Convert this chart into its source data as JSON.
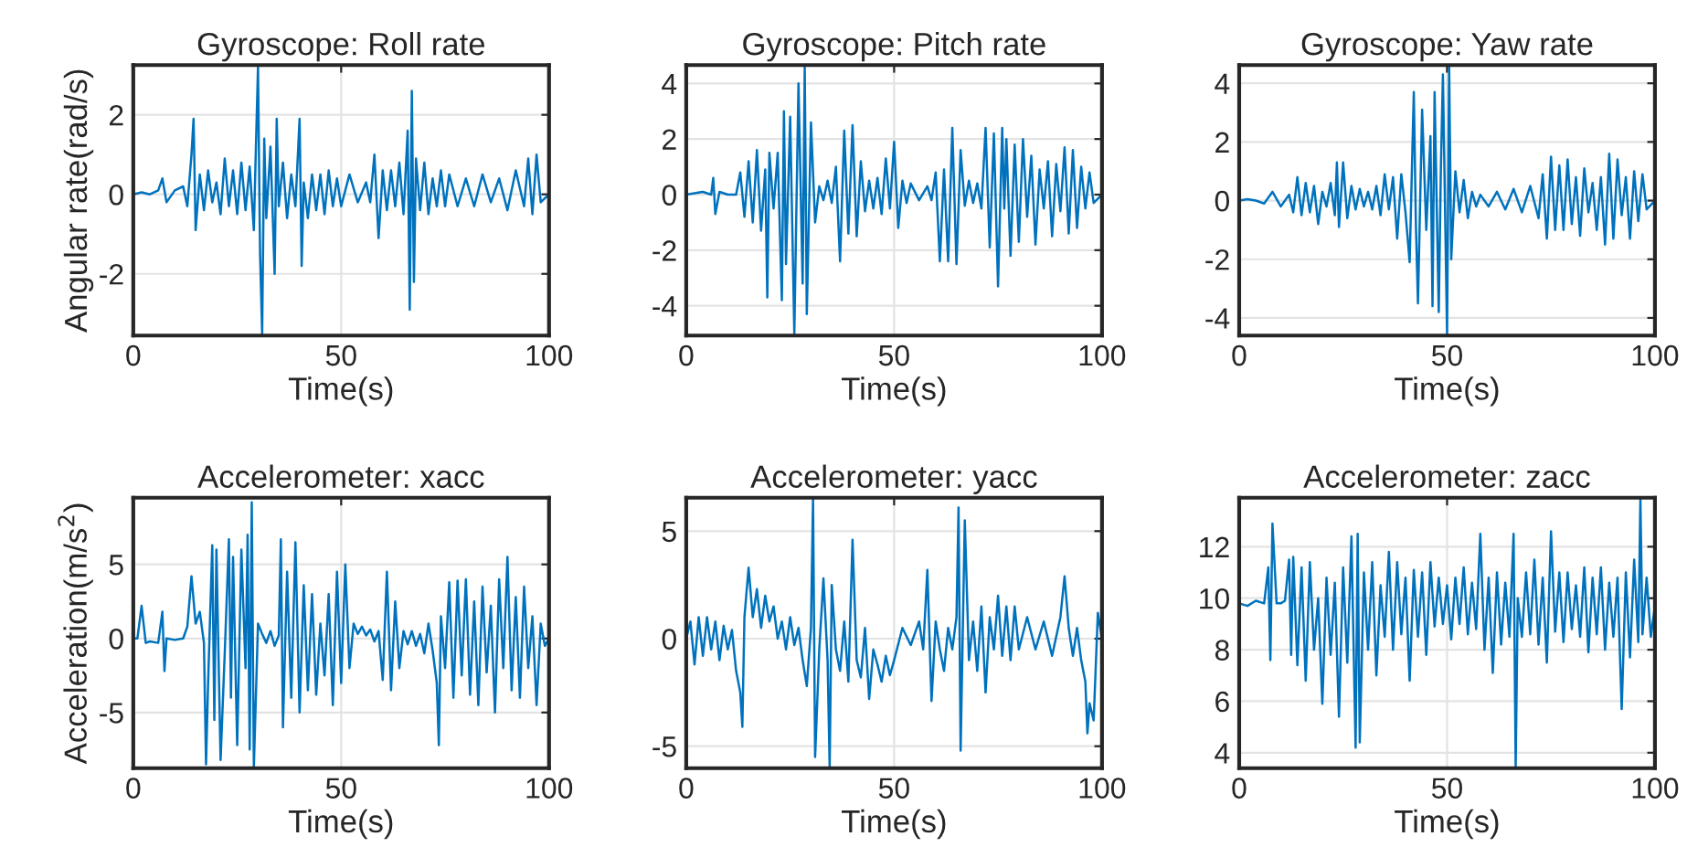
{
  "chart_data": [
    {
      "type": "line",
      "title": "Gyroscope: Roll rate",
      "xlabel": "Time(s)",
      "ylabel": "Angular rate(rad/s)",
      "xlim": [
        0,
        100
      ],
      "xticks": [
        0,
        50,
        100
      ],
      "ylim": [
        -3.55,
        3.25
      ],
      "yticks": [
        -2,
        0,
        2
      ],
      "grid": true,
      "line_style": "solid",
      "series": [
        {
          "color": "#0072bd",
          "x": [
            0,
            2,
            4,
            6,
            7,
            8,
            10,
            12,
            13,
            14,
            14.5,
            15,
            16,
            17,
            18,
            19,
            20,
            21,
            22,
            23,
            24,
            25,
            26,
            27,
            28,
            29,
            29.5,
            30,
            30.5,
            31,
            31.5,
            32,
            33,
            34,
            34.5,
            35,
            36,
            37,
            38,
            39,
            40,
            40.5,
            41,
            42,
            43,
            44,
            45,
            46,
            47,
            48,
            49,
            50,
            52,
            54,
            56,
            57,
            58,
            59,
            60,
            61,
            62,
            63,
            64,
            65,
            66,
            66.5,
            67,
            67.5,
            68,
            69,
            70,
            71,
            72,
            73,
            74,
            75,
            76,
            78,
            80,
            82,
            84,
            86,
            88,
            90,
            92,
            94,
            95,
            96,
            97,
            98,
            100
          ],
          "values": [
            0,
            0.05,
            0,
            0.1,
            0.4,
            -0.2,
            0.1,
            0.2,
            -0.3,
            1,
            1.9,
            -0.9,
            0.5,
            -0.4,
            0.6,
            -0.2,
            0.3,
            -0.5,
            0.9,
            -0.3,
            0.6,
            -0.5,
            0.8,
            -0.4,
            0.7,
            -0.9,
            1.2,
            3.2,
            -1.5,
            -3.5,
            1.4,
            -0.6,
            1.2,
            -2.0,
            1.9,
            -0.3,
            0.8,
            -0.6,
            0.5,
            -0.3,
            1.9,
            -1.8,
            0.3,
            -0.6,
            0.5,
            -0.4,
            0.5,
            -0.5,
            0.6,
            -0.3,
            0.4,
            -0.3,
            0.5,
            -0.2,
            0.3,
            -0.2,
            1.0,
            -1.1,
            0.6,
            -0.4,
            0.6,
            -0.3,
            0.8,
            -0.5,
            1.6,
            -2.9,
            2.6,
            -2.2,
            0.9,
            -0.4,
            0.8,
            -0.5,
            0.4,
            -0.3,
            0.6,
            -0.3,
            0.5,
            -0.3,
            0.4,
            -0.3,
            0.5,
            -0.2,
            0.4,
            -0.4,
            0.6,
            -0.3,
            0.9,
            -0.5,
            1.0,
            -0.2,
            0
          ]
        }
      ]
    },
    {
      "type": "line",
      "title": "Gyroscope: Pitch rate",
      "xlabel": "Time(s)",
      "xlim": [
        0,
        100
      ],
      "xticks": [
        0,
        50,
        100
      ],
      "ylim": [
        -5.07,
        4.66
      ],
      "yticks": [
        -4,
        -2,
        0,
        2,
        4
      ],
      "grid": true,
      "line_style": "solid",
      "series": [
        {
          "color": "#0072bd",
          "x": [
            0,
            2,
            4,
            6,
            6.5,
            7,
            8,
            10,
            12,
            13,
            14,
            15,
            16,
            17,
            18,
            19,
            19.5,
            20,
            21,
            22,
            23,
            23.5,
            24,
            25,
            26,
            27,
            28,
            28.5,
            29,
            30,
            31,
            32,
            33,
            34,
            35,
            36,
            37,
            38,
            39,
            40,
            41,
            42,
            43,
            44,
            45,
            46,
            47,
            48,
            49,
            50,
            51,
            52,
            53,
            54,
            56,
            58,
            59,
            60,
            61,
            62,
            63,
            64,
            65,
            66,
            67,
            68,
            69,
            70,
            71,
            72,
            73,
            74,
            75,
            76,
            76.5,
            77,
            78,
            79,
            80,
            81,
            82,
            83,
            84,
            85,
            86,
            87,
            88,
            89,
            90,
            91,
            92,
            93,
            94,
            95,
            96,
            97,
            98,
            100
          ],
          "values": [
            0,
            0.05,
            0.1,
            0,
            0.6,
            -0.7,
            0.1,
            0,
            0,
            0.8,
            -0.8,
            1.2,
            -1.0,
            1.6,
            -1.3,
            0.9,
            -3.7,
            1.5,
            -0.5,
            1.5,
            -3.8,
            3.0,
            -2.5,
            2.8,
            -5.0,
            4.0,
            -3.2,
            4.6,
            -4.3,
            2.6,
            -1.0,
            0.3,
            -0.2,
            0.5,
            -0.3,
            1.0,
            -2.4,
            2.3,
            -1.4,
            2.5,
            -1.5,
            1.2,
            -0.6,
            0.5,
            -0.5,
            0.6,
            -0.7,
            1.3,
            -0.5,
            1.9,
            -1.2,
            0.5,
            -0.3,
            0.4,
            -0.2,
            0.3,
            -0.2,
            0.8,
            -2.4,
            0.9,
            -2.4,
            2.4,
            -2.5,
            1.6,
            -0.4,
            0.5,
            -0.3,
            0.4,
            -0.5,
            2.4,
            -1.9,
            2.2,
            -3.3,
            2.4,
            -0.5,
            2.0,
            -2.2,
            1.8,
            -1.7,
            2.0,
            -0.8,
            1.4,
            -1.8,
            0.9,
            -0.5,
            1.2,
            -1.5,
            1.1,
            -0.6,
            1.7,
            -1.4,
            1.6,
            -1.2,
            1.0,
            -0.5,
            0.8,
            -0.3,
            0
          ]
        }
      ]
    },
    {
      "type": "line",
      "title": "Gyroscope: Yaw rate",
      "xlabel": "Time(s)",
      "xlim": [
        0,
        100
      ],
      "xticks": [
        0,
        50,
        100
      ],
      "ylim": [
        -4.6,
        4.62
      ],
      "yticks": [
        -4,
        -2,
        0,
        2,
        4
      ],
      "grid": true,
      "line_style": "solid",
      "series": [
        {
          "color": "#0072bd",
          "x": [
            0,
            2,
            4,
            6,
            8,
            10,
            12,
            13,
            14,
            15,
            16,
            17,
            18,
            19,
            20,
            21,
            22,
            23,
            23.5,
            24,
            25,
            26,
            27,
            28,
            29,
            30,
            31,
            32,
            33,
            34,
            35,
            36,
            37,
            38,
            39,
            40,
            41,
            42,
            42.5,
            43,
            44,
            45,
            46,
            46.5,
            47,
            48,
            48.5,
            49,
            50,
            50.5,
            51,
            52,
            53,
            54,
            55,
            56,
            57,
            58,
            60,
            62,
            64,
            66,
            68,
            70,
            72,
            73,
            74,
            75,
            76,
            77,
            78,
            79,
            80,
            81,
            82,
            83,
            84,
            85,
            86,
            87,
            88,
            89,
            90,
            91,
            92,
            93,
            94,
            95,
            96,
            97,
            98,
            100
          ],
          "values": [
            0,
            0.05,
            0,
            -0.1,
            0.3,
            -0.2,
            0.2,
            -0.4,
            0.8,
            -0.5,
            0.6,
            -0.4,
            0.5,
            -0.8,
            0.3,
            -0.2,
            0.6,
            -0.5,
            1.3,
            -0.9,
            1.3,
            -0.6,
            0.5,
            -0.3,
            0.4,
            -0.2,
            0.3,
            -0.3,
            0.5,
            -0.5,
            0.9,
            -0.3,
            0.8,
            -1.3,
            0.9,
            -0.4,
            -2.1,
            3.7,
            -0.8,
            -3.5,
            3.1,
            -1.0,
            2.2,
            -3.6,
            3.7,
            -3.8,
            1.0,
            4.3,
            -4.55,
            4.6,
            -2.0,
            1.0,
            -0.4,
            0.7,
            -0.6,
            0.3,
            -0.2,
            0.2,
            -0.2,
            0.3,
            -0.3,
            0.4,
            -0.4,
            0.5,
            -0.6,
            0.9,
            -1.3,
            1.5,
            -1.0,
            1.2,
            -1.0,
            1.4,
            -0.8,
            0.8,
            -1.2,
            1.1,
            -0.4,
            0.6,
            -1.0,
            0.8,
            -1.5,
            1.6,
            -1.3,
            1.4,
            -0.5,
            0.8,
            -1.3,
            1.0,
            -0.7,
            0.9,
            -0.3,
            0
          ]
        }
      ]
    },
    {
      "type": "line",
      "title": "Accelerometer: xacc",
      "xlabel": "Time(s)",
      "ylabel": "Acceleration(m/s$^{2}$)",
      "xlim": [
        0,
        100
      ],
      "xticks": [
        0,
        50,
        100
      ],
      "ylim": [
        -8.76,
        9.5
      ],
      "yticks": [
        -5,
        0,
        5
      ],
      "grid": true,
      "line_style": "solid",
      "series": [
        {
          "color": "#0072bd",
          "x": [
            0,
            1,
            2,
            3,
            4,
            6,
            7,
            7.5,
            8,
            10,
            12,
            13,
            14,
            15,
            16,
            17,
            17.5,
            18,
            19,
            19.5,
            20,
            21,
            22,
            23,
            23.5,
            24,
            25,
            26,
            27,
            27.5,
            28,
            28.5,
            29,
            30,
            31,
            32,
            33,
            34,
            35,
            35.5,
            36,
            37,
            38,
            39,
            40,
            41,
            42,
            43,
            44,
            45,
            46,
            47,
            48,
            49,
            50,
            51,
            52,
            53,
            54,
            55,
            56,
            57,
            58,
            59,
            60,
            61,
            62,
            63,
            64,
            65,
            66,
            67,
            68,
            69,
            70,
            71,
            72,
            73,
            73.5,
            74,
            75,
            76,
            77,
            78,
            79,
            80,
            81,
            82,
            83,
            84,
            85,
            86,
            87,
            88,
            89,
            90,
            91,
            92,
            93,
            94,
            95,
            96,
            97,
            98,
            99,
            100
          ],
          "values": [
            0,
            0,
            2.2,
            -0.3,
            -0.2,
            -0.3,
            1.8,
            -2.2,
            0,
            -0.1,
            0,
            0.8,
            4.2,
            1.0,
            1.8,
            -0.3,
            -8.5,
            -3,
            6.3,
            -5.5,
            6.0,
            -8.2,
            -1.0,
            6.7,
            -4.0,
            5.5,
            -7.2,
            6.0,
            -2.0,
            7.0,
            -7.5,
            9.2,
            -8.7,
            1.0,
            0.3,
            -0.3,
            0.5,
            -0.5,
            0.2,
            6.7,
            -6.0,
            4.5,
            -4.0,
            6.5,
            -5.0,
            3.6,
            -3.5,
            3.0,
            -3.8,
            1.0,
            -2.5,
            3.0,
            -4.5,
            4.5,
            -3.0,
            5.0,
            -2.0,
            1.0,
            0.3,
            0.8,
            0.2,
            0.6,
            -0.2,
            0.5,
            -2.8,
            4.5,
            -3.5,
            2.5,
            -2.0,
            0.5,
            -0.4,
            0.5,
            -0.5,
            0.3,
            -1.0,
            1.0,
            -0.8,
            -3.0,
            -7.2,
            1.5,
            -2.0,
            3.8,
            -4.0,
            3.9,
            -2.5,
            4.0,
            -3.8,
            2.5,
            -4.5,
            3.5,
            -2.3,
            2.2,
            -5.0,
            4.0,
            -2.0,
            5.5,
            -3.5,
            2.8,
            -4.0,
            3.5,
            -2.0,
            1.5,
            -4.5,
            1.0,
            -0.5,
            0
          ]
        }
      ]
    },
    {
      "type": "line",
      "title": "Accelerometer: yacc",
      "xlabel": "Time(s)",
      "xlim": [
        0,
        100
      ],
      "xticks": [
        0,
        50,
        100
      ],
      "ylim": [
        -6.02,
        6.55
      ],
      "yticks": [
        -5,
        0,
        5
      ],
      "grid": true,
      "line_style": "solid",
      "series": [
        {
          "color": "#0072bd",
          "x": [
            0,
            1,
            2,
            3,
            4,
            5,
            6,
            7,
            8,
            9,
            10,
            11,
            12,
            13,
            13.5,
            14,
            15,
            16,
            17,
            18,
            19,
            20,
            21,
            22,
            23,
            24,
            25,
            26,
            27,
            28,
            29,
            30,
            30.5,
            31,
            32,
            33,
            34,
            34.5,
            35,
            36,
            37,
            38,
            39,
            40,
            41,
            42,
            43,
            44,
            45,
            46,
            47,
            48,
            49,
            50,
            52,
            54,
            56,
            57,
            58,
            59,
            60,
            61,
            62,
            63,
            64,
            65,
            65.5,
            66,
            67,
            68,
            69,
            70,
            71,
            72,
            73,
            74,
            75,
            76,
            77,
            78,
            79,
            80,
            82,
            84,
            86,
            88,
            90,
            91,
            92,
            93,
            94,
            95,
            96,
            96.5,
            97,
            98,
            99,
            100
          ],
          "values": [
            0,
            0.8,
            -1.2,
            1.0,
            -0.8,
            1.0,
            -0.5,
            0.8,
            -1.0,
            0.6,
            -0.5,
            0.4,
            -1.5,
            -2.5,
            -4.1,
            1.0,
            3.3,
            1.0,
            2.3,
            0.5,
            2.0,
            0.8,
            1.5,
            0,
            0.8,
            -0.5,
            1.0,
            -0.3,
            0.5,
            -1.0,
            -2.2,
            0.5,
            6.5,
            -5.5,
            -0.5,
            2.8,
            -1.0,
            -6.0,
            2.5,
            -0.5,
            -1.5,
            0.8,
            -2.0,
            4.6,
            -1.0,
            -1.8,
            0.5,
            -2.8,
            -0.5,
            -1.2,
            -2.0,
            -0.8,
            -1.7,
            -1.0,
            0.5,
            -0.3,
            0.8,
            -0.5,
            3.2,
            -2.9,
            0.8,
            -0.5,
            -1.5,
            0.5,
            -0.5,
            1.0,
            6.1,
            -5.2,
            5.5,
            -1.0,
            0.8,
            -1.5,
            1.5,
            -2.5,
            1.0,
            -0.5,
            2.0,
            -0.8,
            1.5,
            -1.0,
            1.5,
            -0.5,
            1.0,
            -0.5,
            0.8,
            -0.8,
            1.0,
            2.9,
            0.5,
            -0.8,
            0.5,
            -1.0,
            -2.0,
            -4.4,
            -3.0,
            -3.8,
            1.2,
            0
          ]
        }
      ]
    },
    {
      "type": "line",
      "title": "Accelerometer: zacc",
      "xlabel": "Time(s)",
      "xlim": [
        0,
        100
      ],
      "xticks": [
        0,
        50,
        100
      ],
      "ylim": [
        3.4,
        13.9
      ],
      "yticks": [
        4,
        6,
        8,
        10,
        12
      ],
      "grid": true,
      "line_style": "solid",
      "series": [
        {
          "color": "#0072bd",
          "x": [
            0,
            2,
            4,
            6,
            7,
            7.5,
            8,
            9,
            10,
            11,
            12,
            12.5,
            13,
            14,
            15,
            16,
            17,
            18,
            19,
            20,
            21,
            22,
            23,
            24,
            25,
            26,
            27,
            28,
            28.5,
            29,
            30,
            31,
            32,
            33,
            34,
            35,
            36,
            37,
            38,
            39,
            40,
            41,
            42,
            43,
            44,
            45,
            46,
            47,
            48,
            49,
            50,
            51,
            52,
            53,
            54,
            55,
            56,
            57,
            58,
            59,
            60,
            61,
            62,
            63,
            64,
            65,
            66,
            66.5,
            67,
            68,
            69,
            70,
            71,
            72,
            73,
            74,
            75,
            76,
            77,
            78,
            79,
            80,
            81,
            82,
            83,
            84,
            85,
            86,
            87,
            88,
            89,
            90,
            91,
            92,
            93,
            94,
            95,
            96,
            96.5,
            97,
            98,
            99,
            100
          ],
          "values": [
            9.8,
            9.7,
            9.9,
            9.8,
            11.2,
            7.6,
            12.9,
            9.8,
            9.8,
            9.9,
            11.5,
            7.8,
            11.6,
            7.4,
            11.2,
            6.8,
            11.4,
            8.0,
            10.0,
            5.9,
            10.8,
            7.8,
            10.6,
            5.4,
            11.2,
            7.5,
            12.4,
            4.2,
            12.5,
            4.4,
            11.0,
            8.0,
            11.4,
            7.0,
            10.5,
            8.5,
            11.8,
            8.0,
            11.4,
            8.6,
            10.8,
            6.8,
            11.1,
            8.5,
            11.0,
            7.8,
            11.4,
            8.9,
            10.8,
            9.0,
            10.5,
            8.4,
            10.8,
            9.0,
            11.2,
            8.6,
            10.6,
            8.8,
            12.5,
            8.0,
            10.8,
            7.1,
            11.0,
            8.2,
            10.6,
            8.5,
            12.5,
            3.45,
            10.0,
            8.5,
            11.0,
            8.6,
            11.5,
            8.2,
            10.8,
            7.5,
            12.6,
            8.7,
            11.0,
            8.3,
            11.0,
            8.8,
            10.5,
            8.5,
            11.2,
            7.9,
            10.8,
            8.6,
            11.2,
            8.0,
            10.6,
            8.5,
            10.8,
            5.7,
            11.0,
            7.7,
            11.5,
            8.3,
            13.85,
            8.6,
            10.8,
            8.5,
            9.7
          ]
        }
      ]
    }
  ]
}
